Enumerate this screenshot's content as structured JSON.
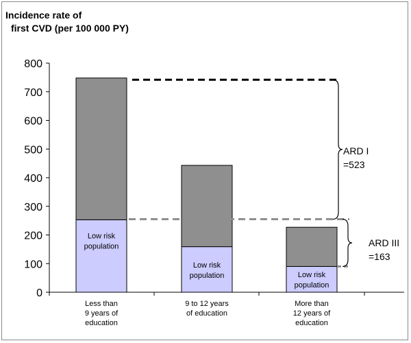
{
  "chart_data": {
    "type": "bar",
    "stacked": true,
    "y_axis_title": [
      "Incidence rate of",
      "first CVD (per 100 000 PY)"
    ],
    "ylim": [
      0,
      800
    ],
    "yticks": [
      "0",
      "100",
      "200",
      "300",
      "400",
      "500",
      "600",
      "700",
      "800"
    ],
    "categories": [
      [
        "Less than",
        "9 years of",
        "education"
      ],
      [
        "9 to 12 years",
        "of education"
      ],
      [
        "More than",
        "12 years of",
        "education"
      ]
    ],
    "series": [
      {
        "values": [
          253,
          159,
          90
        ],
        "color": "#ccccff",
        "segment_label": [
          "Low risk",
          "population"
        ]
      },
      {
        "values": [
          495,
          284,
          137
        ],
        "color": "#8f8f8f"
      }
    ],
    "reference_lines": [
      {
        "value": 742,
        "color": "#000000",
        "style": "dashed"
      },
      {
        "value": 255,
        "color": "#8f8f8f",
        "style": "dashed"
      }
    ],
    "annotations": [
      {
        "lines": [
          "ARD I",
          "=523"
        ]
      },
      {
        "lines": [
          "ARD III",
          "=163"
        ]
      }
    ],
    "grid": false
  }
}
